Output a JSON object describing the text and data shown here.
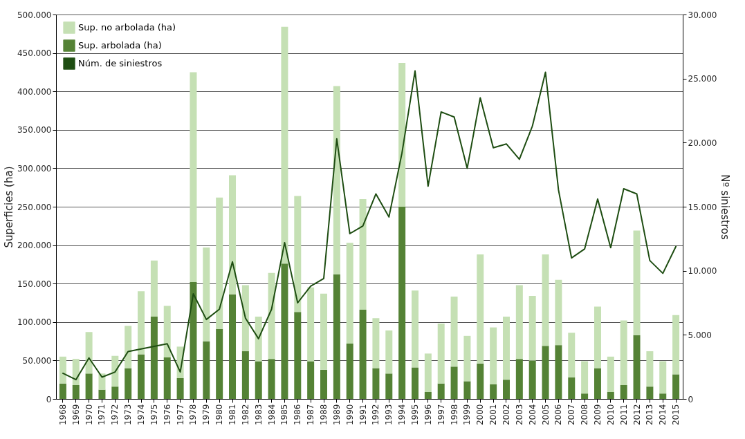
{
  "chart_data": {
    "type": "bar",
    "stacked": true,
    "categories": [
      "1968",
      "1969",
      "1970",
      "1971",
      "1972",
      "1973",
      "1974",
      "1975",
      "1976",
      "1977",
      "1978",
      "1979",
      "1980",
      "1981",
      "1982",
      "1983",
      "1984",
      "1985",
      "1986",
      "1987",
      "1988",
      "1989",
      "1990",
      "1991",
      "1992",
      "1993",
      "1994",
      "1995",
      "1996",
      "1997",
      "1998",
      "1999",
      "2000",
      "2001",
      "2002",
      "2003",
      "2004",
      "2005",
      "2006",
      "2007",
      "2008",
      "2009",
      "2010",
      "2011",
      "2012",
      "2013",
      "2014",
      "2015"
    ],
    "ylabel": "Superficies (ha)",
    "y2label": "Nº siniestros",
    "ylim": [
      0,
      500000
    ],
    "yticks": [
      {
        "value": 0,
        "label": "0"
      },
      {
        "value": 50000,
        "label": "50.000"
      },
      {
        "value": 100000,
        "label": "100.000"
      },
      {
        "value": 150000,
        "label": "150.000"
      },
      {
        "value": 200000,
        "label": "200.000"
      },
      {
        "value": 250000,
        "label": "250.000"
      },
      {
        "value": 300000,
        "label": "300.000"
      },
      {
        "value": 350000,
        "label": "350.000"
      },
      {
        "value": 400000,
        "label": "400.000"
      },
      {
        "value": 450000,
        "label": "450.000"
      },
      {
        "value": 500000,
        "label": "500.000"
      }
    ],
    "y2lim": [
      0,
      30000
    ],
    "y2ticks": [
      {
        "value": 0,
        "label": "0"
      },
      {
        "value": 5000,
        "label": "5.000"
      },
      {
        "value": 10000,
        "label": "10.000"
      },
      {
        "value": 15000,
        "label": "15.000"
      },
      {
        "value": 20000,
        "label": "20.000"
      },
      {
        "value": 25000,
        "label": "25.000"
      },
      {
        "value": 30000,
        "label": "30.000"
      }
    ],
    "grid": "y",
    "legend": "top left",
    "series": [
      {
        "name": "Sup. arbolada (ha)",
        "color": "#548235",
        "values": [
          20000,
          18000,
          33000,
          12000,
          16000,
          40000,
          58000,
          107000,
          54000,
          27000,
          152000,
          75000,
          91000,
          136000,
          62000,
          49000,
          52000,
          176000,
          113000,
          49000,
          38000,
          162000,
          72000,
          116000,
          40000,
          33000,
          250000,
          41000,
          9000,
          20000,
          42000,
          23000,
          46000,
          19000,
          25000,
          52000,
          50000,
          69000,
          70000,
          28000,
          7000,
          40000,
          9000,
          18000,
          83000,
          16000,
          7000,
          32000
        ]
      },
      {
        "name": "Sup. no arbolada (ha)",
        "color": "#c5e0b4",
        "values": [
          35000,
          34000,
          54000,
          21000,
          40000,
          55000,
          82000,
          73000,
          67000,
          41000,
          273000,
          122000,
          171000,
          155000,
          86000,
          58000,
          112000,
          308000,
          151000,
          96000,
          99000,
          245000,
          131000,
          144000,
          65000,
          56000,
          187000,
          100000,
          50000,
          78000,
          91000,
          59000,
          142000,
          74000,
          82000,
          96000,
          84000,
          119000,
          85000,
          58000,
          42000,
          80000,
          46000,
          84000,
          136000,
          46000,
          42000,
          77000
        ]
      },
      {
        "name": "Núm. de siniestros",
        "color": "#1e4d12",
        "type": "line",
        "axis": "y2",
        "values": [
          2000,
          1500,
          3200,
          1700,
          2100,
          3700,
          3900,
          4100,
          4300,
          2100,
          8200,
          6200,
          7000,
          10700,
          6300,
          4700,
          7000,
          12200,
          7500,
          8800,
          9400,
          20300,
          12900,
          13500,
          16000,
          14200,
          19200,
          25600,
          16600,
          22400,
          22000,
          18000,
          23500,
          19600,
          19900,
          18700,
          21300,
          25500,
          16300,
          11000,
          11700,
          15600,
          11800,
          16400,
          16000,
          10800,
          9800,
          11900
        ]
      }
    ]
  }
}
